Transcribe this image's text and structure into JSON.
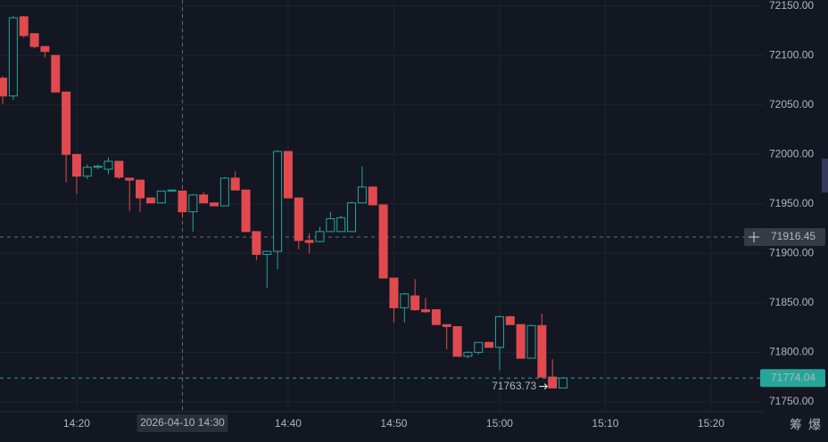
{
  "chart_data": {
    "type": "candlestick",
    "x": [
      "14:13",
      "14:14",
      "14:15",
      "14:16",
      "14:17",
      "14:18",
      "14:19",
      "14:20",
      "14:21",
      "14:22",
      "14:23",
      "14:24",
      "14:25",
      "14:26",
      "14:27",
      "14:28",
      "14:29",
      "14:30",
      "14:31",
      "14:32",
      "14:33",
      "14:34",
      "14:35",
      "14:36",
      "14:37",
      "14:38",
      "14:39",
      "14:40",
      "14:41",
      "14:42",
      "14:43",
      "14:44",
      "14:45",
      "14:46",
      "14:47",
      "14:48",
      "14:49",
      "14:50",
      "14:51",
      "14:52",
      "14:53",
      "14:54",
      "14:55",
      "14:56",
      "14:57",
      "14:58",
      "14:59",
      "15:00",
      "15:01",
      "15:02",
      "15:03",
      "15:04",
      "15:05",
      "15:06"
    ],
    "open": [
      72077,
      72059,
      72139,
      72122,
      72109,
      72100,
      72063,
      72000,
      71978,
      71987,
      71985,
      71993,
      71976,
      71974,
      71956,
      71951,
      71963,
      71963,
      71942,
      71959,
      71951,
      71948,
      71976,
      71964,
      71922,
      71899,
      71902,
      72003,
      71956,
      71913,
      71912,
      71922,
      71922,
      71922,
      71951,
      71967,
      71949,
      71875,
      71845,
      71857,
      71843,
      71843,
      71828,
      71826,
      71796,
      71800,
      71810,
      71805,
      71836,
      71828,
      71794,
      71827,
      71775,
      71764
    ],
    "high": [
      72079,
      72140,
      72140,
      72122,
      72109,
      72100,
      72063,
      72000,
      71990,
      71990,
      71997,
      71993,
      71976,
      71974,
      71956,
      71963,
      71964,
      71963,
      71960,
      71962,
      71951,
      71977,
      71983,
      71964,
      71922,
      71903,
      72004,
      72003,
      71956,
      71920,
      71927,
      71942,
      71938,
      71952,
      71988,
      71967,
      71949,
      71875,
      71860,
      71874,
      71855,
      71843,
      71828,
      71826,
      71801,
      71810,
      71811,
      71837,
      71837,
      71828,
      71828,
      71839,
      71793,
      71775
    ],
    "low": [
      72051,
      72055,
      72118,
      72107,
      72098,
      72063,
      71972,
      71960,
      71975,
      71985,
      71980,
      71975,
      71943,
      71942,
      71951,
      71951,
      71962,
      71936,
      71922,
      71951,
      71948,
      71948,
      71964,
      71922,
      71893,
      71865,
      71884,
      71956,
      71904,
      71900,
      71911,
      71922,
      71922,
      71922,
      71951,
      71949,
      71875,
      71830,
      71830,
      71842,
      71840,
      71828,
      71803,
      71796,
      71794,
      71798,
      71805,
      71782,
      71828,
      71794,
      71794,
      71775,
      71763.73,
      71764
    ],
    "close": [
      72059,
      72138,
      72120,
      72109,
      72104,
      72063,
      72000,
      71978,
      71987,
      71988,
      71993,
      71977,
      71974,
      71956,
      71951,
      71963,
      71964,
      71942,
      71959,
      71951,
      71948,
      71976,
      71964,
      71922,
      71899,
      71902,
      72003,
      71956,
      71913,
      71911,
      71922,
      71935,
      71936,
      71951,
      71967,
      71949,
      71875,
      71845,
      71859,
      71843,
      71841,
      71828,
      71826,
      71796,
      71800,
      71810,
      71805,
      71836,
      71828,
      71794,
      71827,
      71775,
      71764,
      71774.04
    ],
    "up_color": "#26a69a",
    "down_color": "#e04a4f",
    "xlim": [
      "14:13",
      "15:25"
    ],
    "xticks": [
      "14:20",
      "14:30",
      "14:40",
      "14:50",
      "15:00",
      "15:10",
      "15:20"
    ],
    "ylim": [
      71740,
      72156
    ],
    "yticks": [
      {
        "value": 71750,
        "label": "71750.00"
      },
      {
        "value": 71800,
        "label": "71800.00"
      },
      {
        "value": 71850,
        "label": "71850.00"
      },
      {
        "value": 71900,
        "label": "71900.00"
      },
      {
        "value": 71950,
        "label": "71950.00"
      },
      {
        "value": 72000,
        "label": "72000.00"
      },
      {
        "value": 72050,
        "label": "72050.00"
      },
      {
        "value": 72100,
        "label": "72100.00"
      },
      {
        "value": 72150,
        "label": "72150.00"
      }
    ],
    "grid": true,
    "crosshair": {
      "x": "14:30",
      "x_label": "2026-04-10 14:30",
      "y": 71916.45
    },
    "last_price": 71774.04,
    "low_marker": {
      "x": "15:05",
      "value": 71763.73
    }
  },
  "toolbar_labels": [
    "筹",
    "爆"
  ]
}
